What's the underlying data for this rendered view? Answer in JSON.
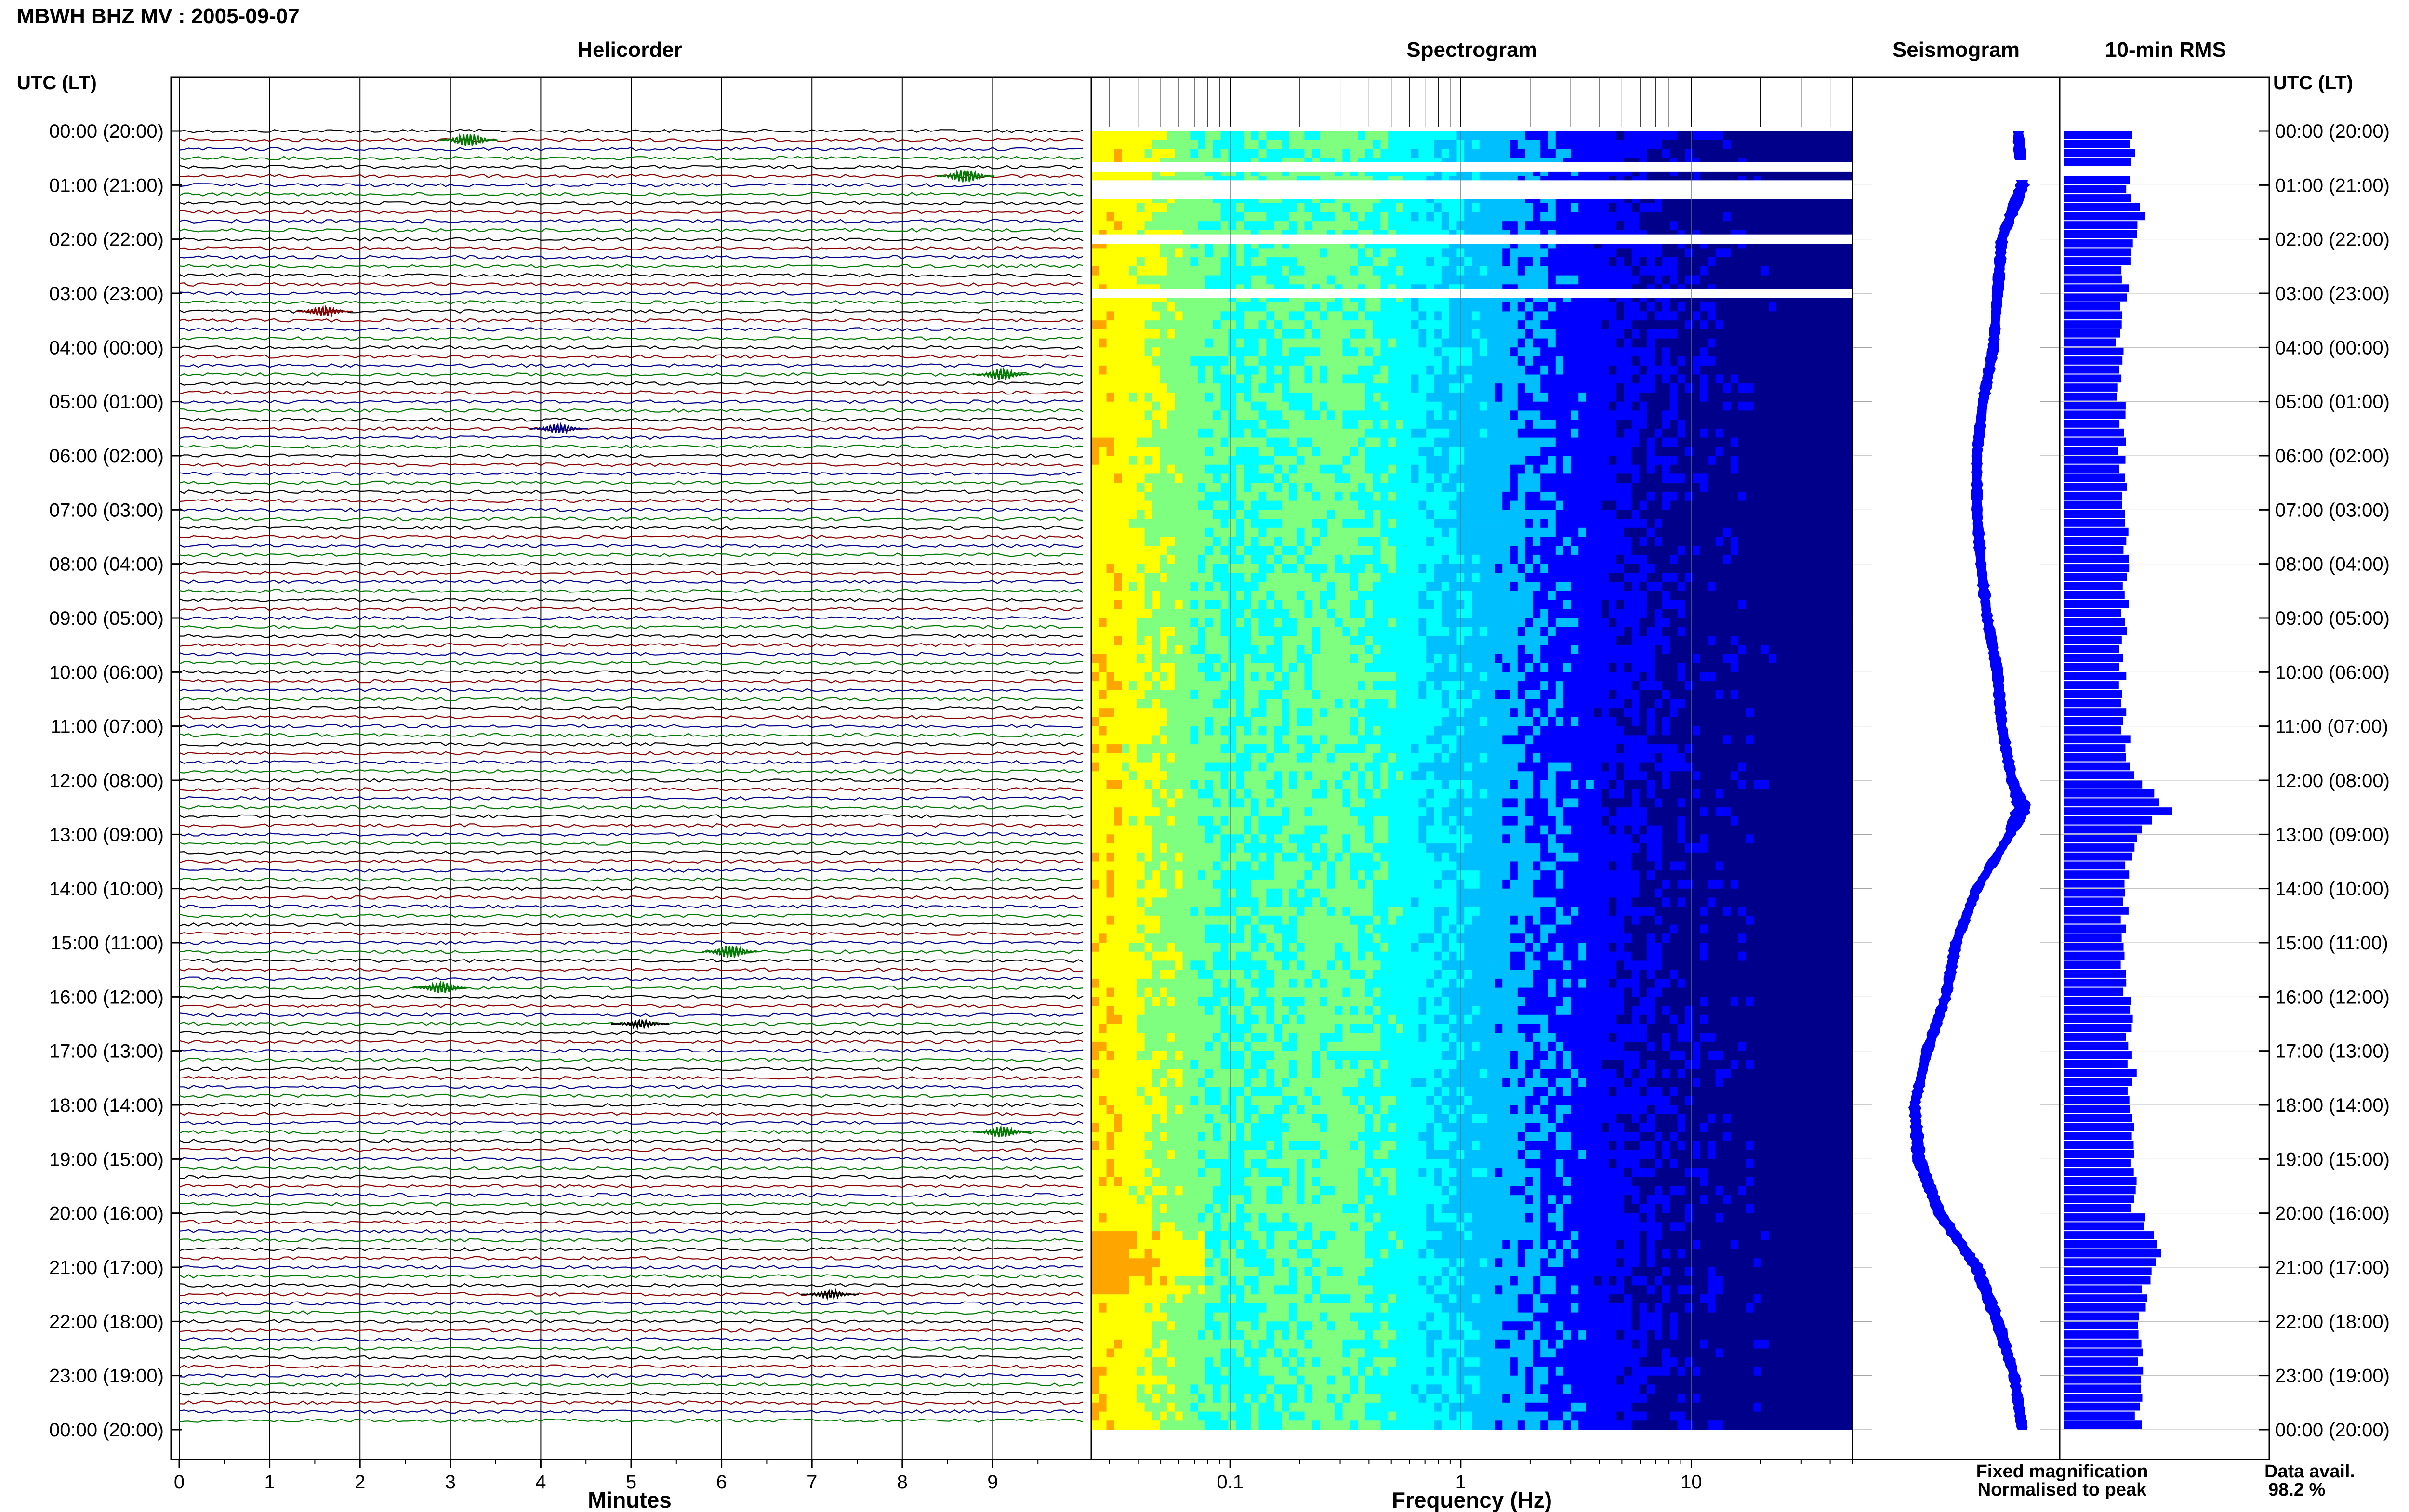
{
  "figure": {
    "title": "MBWH BHZ MV : 2005-09-07",
    "time_axis_label": "UTC (LT)"
  },
  "chart_data": [
    {
      "type": "line",
      "panel": "helicorder",
      "title": "Helicorder",
      "xlabel": "Minutes",
      "xlim": [
        0,
        10
      ],
      "x_ticks": [
        0,
        1,
        2,
        3,
        4,
        5,
        6,
        7,
        8,
        9
      ],
      "row_minutes": 10,
      "rows": 144,
      "trace_colors": [
        "#000000",
        "#8b0000",
        "#00008b",
        "#007a00"
      ],
      "events": [
        {
          "time": "00:10",
          "minute": 3.2,
          "amp": 3.5,
          "color": "#007a00"
        },
        {
          "time": "00:50",
          "minute": 8.7,
          "amp": 3.5,
          "color": "#007a00"
        },
        {
          "time": "03:20",
          "minute": 1.6,
          "amp": 2.5,
          "color": "#8b0000"
        },
        {
          "time": "04:30",
          "minute": 9.1,
          "amp": 3,
          "color": "#007a00"
        },
        {
          "time": "05:30",
          "minute": 4.2,
          "amp": 2.5,
          "color": "#00008b"
        },
        {
          "time": "15:10",
          "minute": 6.1,
          "amp": 3.5,
          "color": "#007a00"
        },
        {
          "time": "15:50",
          "minute": 2.9,
          "amp": 3,
          "color": "#007a00"
        },
        {
          "time": "16:30",
          "minute": 5.1,
          "amp": 2,
          "color": "#000000"
        },
        {
          "time": "18:30",
          "minute": 9.1,
          "amp": 3,
          "color": "#007a00"
        },
        {
          "time": "21:30",
          "minute": 7.2,
          "amp": 2,
          "color": "#000000"
        }
      ]
    },
    {
      "type": "heatmap",
      "panel": "spectrogram",
      "title": "Spectrogram",
      "xlabel": "Frequency (Hz)",
      "xscale": "log",
      "xlim": [
        0.025,
        50
      ],
      "x_tick_labels": [
        "0.1",
        "1",
        "10"
      ],
      "x_ticks": [
        0.1,
        1,
        10
      ],
      "colormap": [
        "#00008b",
        "#0000ff",
        "#00bfff",
        "#00ffff",
        "#7fff7f",
        "#ffff00",
        "#ffa500"
      ],
      "profile": {
        "freq_hz": [
          0.03,
          0.05,
          0.1,
          0.3,
          1,
          3,
          10,
          50
        ],
        "level": [
          0.82,
          0.7,
          0.55,
          0.62,
          0.4,
          0.24,
          0.1,
          0.05
        ]
      },
      "data_gaps_utc": [
        "00:40",
        "01:00",
        "01:10",
        "02:00",
        "03:00"
      ]
    },
    {
      "type": "line",
      "panel": "seismogram",
      "title": "Seismogram",
      "legend": [
        {
          "label": "Fixed magnification",
          "color": "#0000ff"
        },
        {
          "label": "Normalised to peak",
          "color": "#ff0000"
        }
      ],
      "series": [
        {
          "name": "Fixed magnification",
          "color": "#0000ff",
          "time_h": [
            0,
            1,
            2,
            3,
            4,
            5,
            6,
            7,
            8,
            9,
            10,
            11,
            12,
            12.5,
            13,
            14,
            15,
            16,
            17,
            18,
            19,
            20,
            21,
            22,
            23,
            24
          ],
          "offset": [
            0.8,
            0.82,
            0.72,
            0.7,
            0.68,
            0.63,
            0.6,
            0.6,
            0.62,
            0.65,
            0.7,
            0.72,
            0.77,
            0.82,
            0.76,
            0.6,
            0.5,
            0.45,
            0.36,
            0.3,
            0.32,
            0.42,
            0.6,
            0.7,
            0.78,
            0.82
          ],
          "band": [
            0.05,
            0.06,
            0.05,
            0.05,
            0.05,
            0.05,
            0.05,
            0.05,
            0.05,
            0.05,
            0.05,
            0.05,
            0.05,
            0.09,
            0.05,
            0.05,
            0.05,
            0.05,
            0.05,
            0.05,
            0.06,
            0.06,
            0.06,
            0.06,
            0.05,
            0.05
          ]
        }
      ],
      "data_gaps_utc": [
        "00:40",
        "00:50"
      ]
    },
    {
      "type": "bar",
      "panel": "rms",
      "title": "10-min RMS",
      "orientation": "horizontal",
      "bin_minutes": 10,
      "color": "#0000ff",
      "profile": {
        "time_h": [
          0,
          0.5,
          1,
          1.5,
          2,
          3,
          4,
          5,
          6,
          7,
          8,
          9,
          10,
          11,
          11.5,
          12,
          12.3,
          12.6,
          13,
          14,
          15,
          16,
          17,
          18,
          19,
          20,
          20.4,
          20.8,
          21.2,
          22,
          23,
          24
        ],
        "rms": [
          0.7,
          0.7,
          0.62,
          0.8,
          0.65,
          0.6,
          0.55,
          0.57,
          0.58,
          0.6,
          0.62,
          0.6,
          0.58,
          0.6,
          0.64,
          0.72,
          0.95,
          1.0,
          0.72,
          0.6,
          0.6,
          0.62,
          0.68,
          0.66,
          0.66,
          0.72,
          0.9,
          1.0,
          0.82,
          0.78,
          0.8,
          0.74
        ]
      },
      "data_gaps_utc": [
        "00:40"
      ]
    }
  ],
  "time_labels": {
    "utc": [
      "00:00",
      "01:00",
      "02:00",
      "03:00",
      "04:00",
      "05:00",
      "06:00",
      "07:00",
      "08:00",
      "09:00",
      "10:00",
      "11:00",
      "12:00",
      "13:00",
      "14:00",
      "15:00",
      "16:00",
      "17:00",
      "18:00",
      "19:00",
      "20:00",
      "21:00",
      "22:00",
      "23:00",
      "00:00"
    ],
    "lt": [
      "(20:00)",
      "(21:00)",
      "(22:00)",
      "(23:00)",
      "(00:00)",
      "(01:00)",
      "(02:00)",
      "(03:00)",
      "(04:00)",
      "(05:00)",
      "(06:00)",
      "(07:00)",
      "(08:00)",
      "(09:00)",
      "(10:00)",
      "(11:00)",
      "(12:00)",
      "(13:00)",
      "(14:00)",
      "(15:00)",
      "(16:00)",
      "(17:00)",
      "(18:00)",
      "(19:00)",
      "(20:00)"
    ]
  },
  "footer": {
    "data_avail_label": "Data avail.",
    "data_avail_value": "98.2 %"
  }
}
